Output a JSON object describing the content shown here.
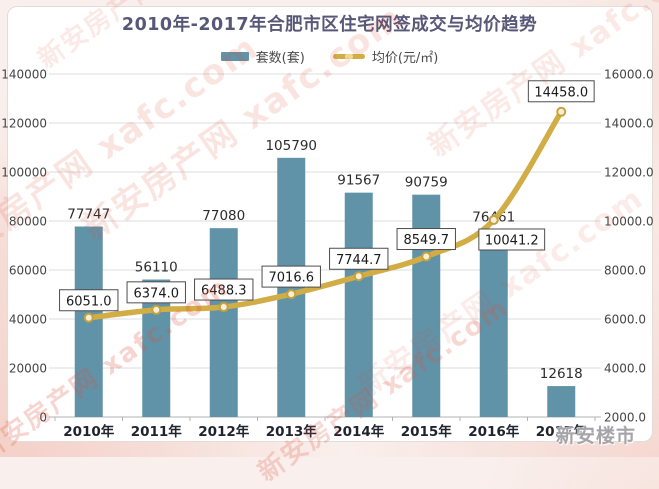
{
  "header": {
    "title": "2010年-2017年合肥市区住宅网签成交与均价趋势"
  },
  "chart_data": {
    "type": "bar+line",
    "title": "2010年-2017年合肥市区住宅网签成交与均价趋势",
    "categories": [
      "2010年",
      "2011年",
      "2012年",
      "2013年",
      "2014年",
      "2015年",
      "2016年",
      "2017年"
    ],
    "series": [
      {
        "name": "套数(套)",
        "type": "bar",
        "axis": "left",
        "color": "#6093a8",
        "values": [
          77747,
          56110,
          77080,
          105790,
          91567,
          90759,
          76461,
          12618
        ]
      },
      {
        "name": "均价(元/㎡)",
        "type": "line",
        "axis": "right",
        "color": "#d2ad45",
        "marker_fill": "#f6efdb",
        "marker_stroke": "#c7a23b",
        "values": [
          6051.0,
          6374.0,
          6488.3,
          7016.6,
          7744.7,
          8549.7,
          10041.2,
          14458.0
        ],
        "value_labels": [
          "6051.0",
          "6374.0",
          "6488.3",
          "7016.6",
          "7744.7",
          "8549.7",
          "10041.2",
          "14458.0"
        ]
      }
    ],
    "left_axis": {
      "min": 0,
      "max": 140000,
      "step": 20000,
      "tick_labels": [
        "0",
        "20000",
        "40000",
        "60000",
        "80000",
        "100000",
        "120000",
        "140000"
      ]
    },
    "right_axis": {
      "min": 2000,
      "max": 16000,
      "step": 2000,
      "tick_labels": [
        "2000.0",
        "4000.0",
        "6000.0",
        "8000.0",
        "10000.0",
        "12000.0",
        "14000.0",
        "16000.0"
      ]
    },
    "grid": true,
    "legend_position": "top-center"
  },
  "watermarks": {
    "site_text": "新安房产网 xafc.com",
    "brand": "新安楼市"
  }
}
